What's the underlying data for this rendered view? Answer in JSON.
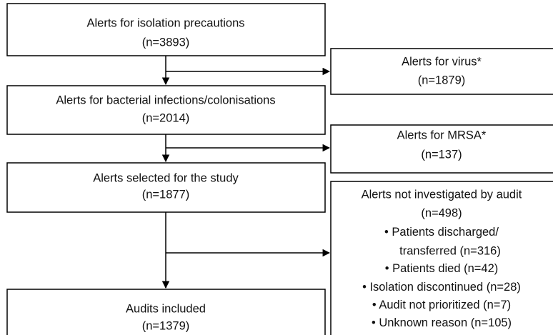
{
  "nodes": [
    {
      "label": "Alerts for isolation precautions",
      "count": "(n=3893)"
    },
    {
      "label": "Alerts for bacterial infections/colonisations",
      "count": "(n=2014)"
    },
    {
      "label": "Alerts selected for the study",
      "count": "(n=1877)"
    },
    {
      "label": "Audits included",
      "count": "(n=1379)"
    }
  ],
  "exclusions": [
    {
      "label": "Alerts for virus*",
      "count": "(n=1879)"
    },
    {
      "label": "Alerts for MRSA*",
      "count": "(n=137)"
    },
    {
      "label": "Alerts not investigated by audit",
      "count": "(n=498)",
      "items": [
        [
          "Patients discharged/",
          "transferred (n=316)"
        ],
        [
          "Patients died (n=42)"
        ],
        [
          "Isolation discontinued (n=28)"
        ],
        [
          "Audit not prioritized (n=7)"
        ],
        [
          "Unknown reason (n=105)"
        ]
      ]
    }
  ]
}
